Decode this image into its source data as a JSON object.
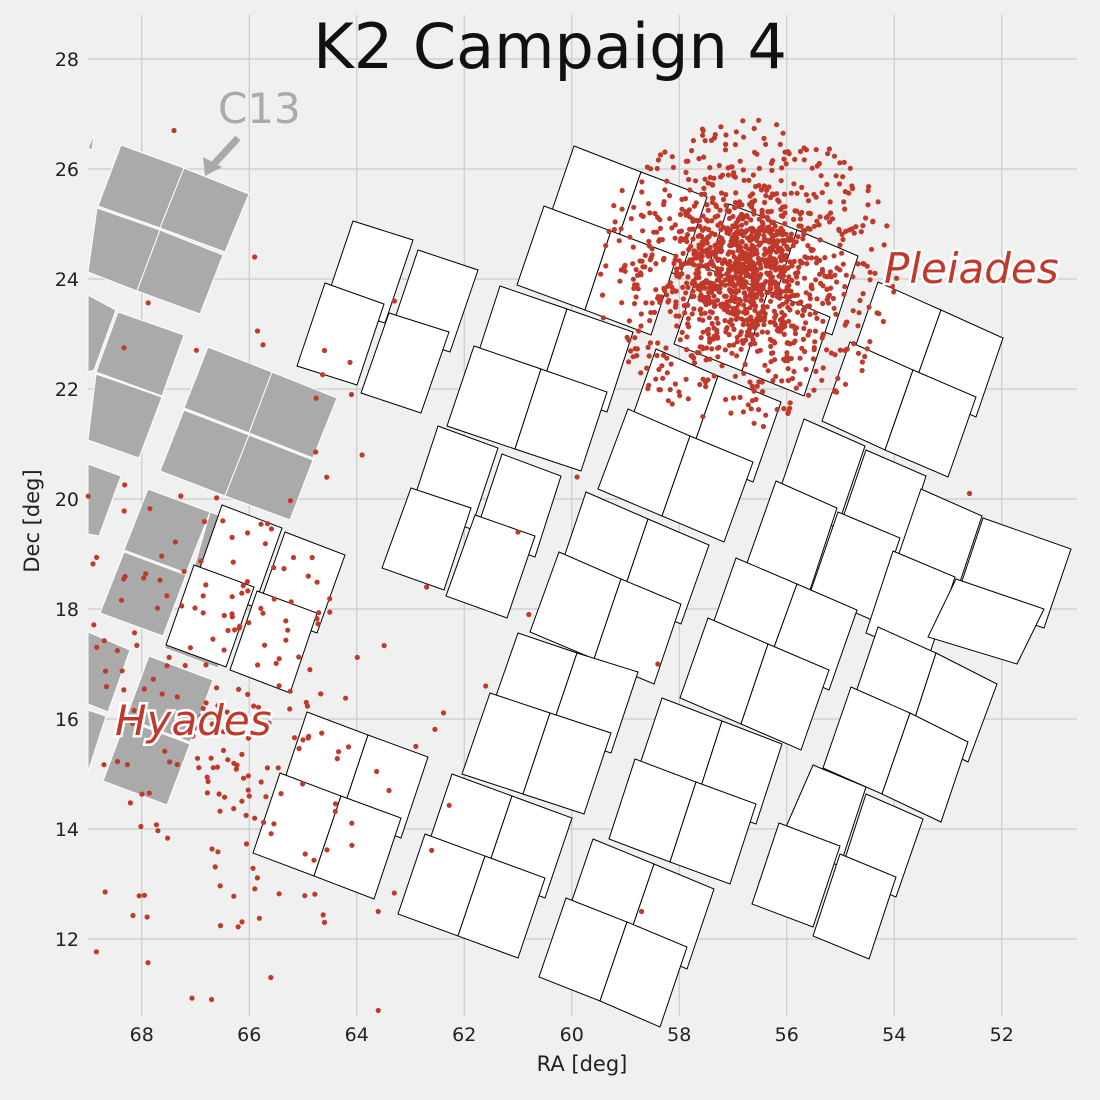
{
  "chart_data": {
    "type": "scatter",
    "title": "K2 Campaign 4",
    "xlabel": "RA [deg]",
    "ylabel": "Dec [deg]",
    "xlim": [
      69,
      50.6
    ],
    "ylim": [
      10.6,
      28.8
    ],
    "x_ticks": [
      "68",
      "66",
      "64",
      "62",
      "60",
      "58",
      "56",
      "54",
      "52"
    ],
    "y_ticks": [
      "12",
      "14",
      "16",
      "18",
      "20",
      "22",
      "24",
      "26",
      "28"
    ],
    "grid": true,
    "annotations": [
      {
        "text": "C13",
        "arrow": true
      },
      {
        "text": "Pleiades"
      },
      {
        "text": "Hyades"
      }
    ],
    "colors": {
      "background": "#f0f0f0",
      "grid": "#cbcbcb",
      "campaign4_fov": "#ffffff",
      "campaign13_fov": "#aaaaaa",
      "stars": "#c0392b"
    },
    "series": [
      {
        "name": "Pleiades",
        "type": "scatter",
        "center": [
          56.75,
          24.1
        ],
        "radius_deg": 2.8
      },
      {
        "name": "Hyades",
        "type": "scatter",
        "center": [
          66.5,
          16.0
        ],
        "radius_deg": 4.5
      }
    ]
  }
}
